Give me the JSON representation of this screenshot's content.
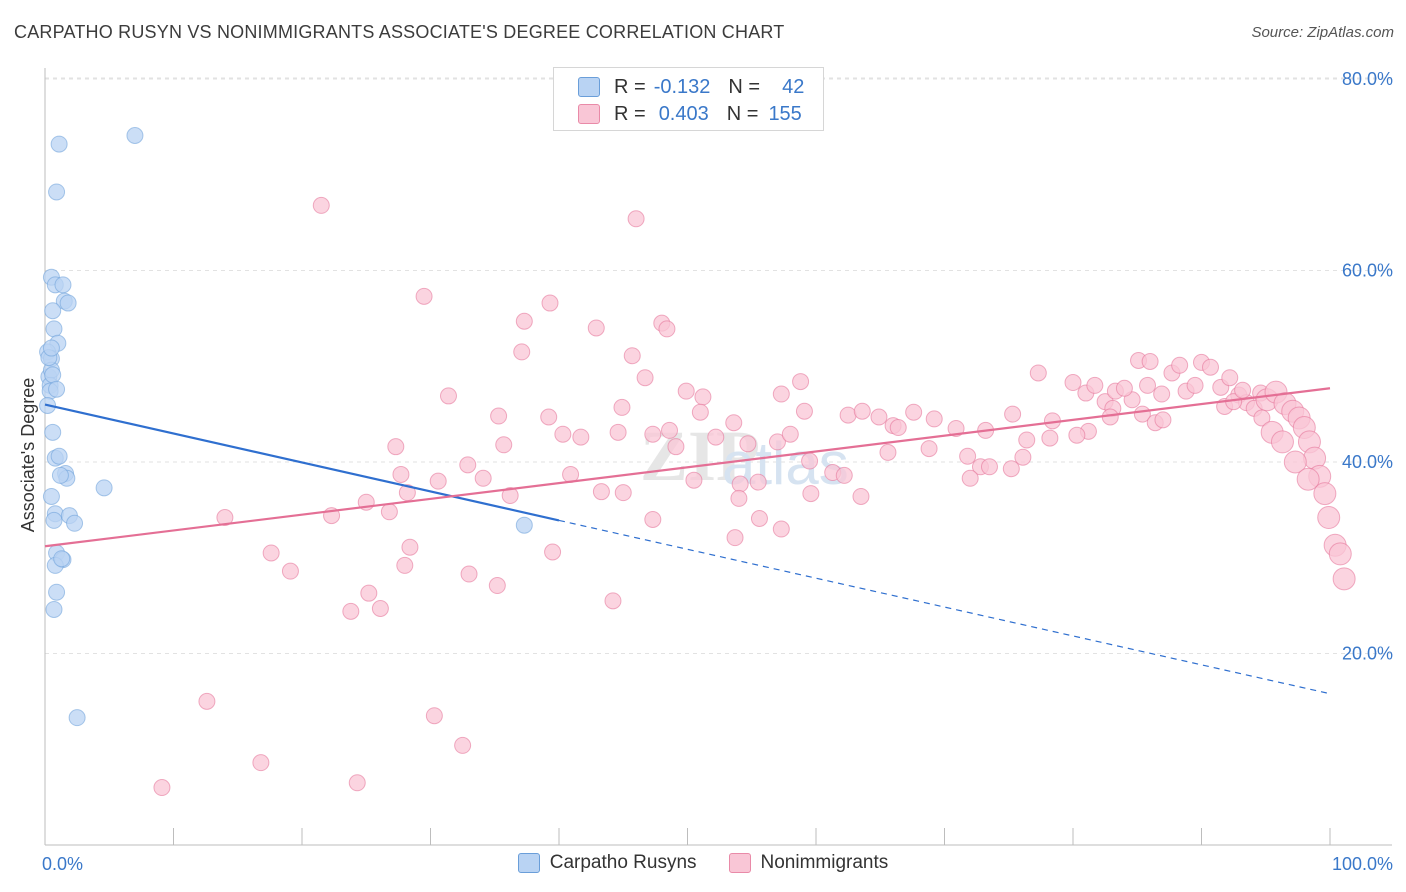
{
  "title": "CARPATHO RUSYN VS NONIMMIGRANTS ASSOCIATE'S DEGREE CORRELATION CHART",
  "source": "Source: ZipAtlas.com",
  "legend_stats": [
    {
      "r_label": "R =",
      "r_value": "-0.132",
      "n_label": "N =",
      "n_value": "42",
      "fill": "#b9d3f3",
      "stroke": "#6a9ed9"
    },
    {
      "r_label": "R =",
      "r_value": "0.403",
      "n_label": "N =",
      "n_value": "155",
      "fill": "#f9c6d6",
      "stroke": "#e98aa8"
    }
  ],
  "bottom_legend": [
    "Carpatho Rusyns",
    "Nonimmigrants"
  ],
  "chart_data": {
    "type": "scatter",
    "title": "CARPATHO RUSYN VS NONIMMIGRANTS ASSOCIATE'S DEGREE CORRELATION CHART",
    "xlabel": "",
    "ylabel": "Associate's Degree",
    "xlim": [
      0,
      100
    ],
    "ylim": [
      0,
      82
    ],
    "x_tick_labels": [
      "0.0%",
      "100.0%"
    ],
    "y_ticks": [
      20,
      40,
      60,
      80
    ],
    "y_tick_labels": [
      "20.0%",
      "40.0%",
      "60.0%",
      "80.0%"
    ],
    "grid": true,
    "legend_position": "top-center",
    "watermark": "ZIPatlas",
    "series": [
      {
        "name": "Carpatho Rusyns",
        "color": "#6a9ed9",
        "fill": "#b9d3f3",
        "trend": {
          "x": [
            0,
            40,
            100
          ],
          "y": [
            46.0,
            33.9,
            15.8
          ],
          "solid_until": 40
        },
        "points": [
          [
            1.1,
            73.2
          ],
          [
            7.0,
            74.1
          ],
          [
            0.9,
            68.2
          ],
          [
            0.5,
            59.3
          ],
          [
            0.8,
            58.5
          ],
          [
            1.4,
            58.5
          ],
          [
            1.5,
            56.8
          ],
          [
            0.6,
            55.8
          ],
          [
            0.7,
            53.9
          ],
          [
            1.0,
            52.4
          ],
          [
            0.2,
            51.5
          ],
          [
            0.5,
            50.8
          ],
          [
            0.3,
            48.9
          ],
          [
            0.5,
            49.6
          ],
          [
            0.4,
            48.0
          ],
          [
            0.6,
            43.1
          ],
          [
            0.8,
            40.4
          ],
          [
            1.1,
            40.6
          ],
          [
            1.6,
            38.8
          ],
          [
            1.7,
            38.3
          ],
          [
            4.6,
            37.3
          ],
          [
            0.5,
            36.4
          ],
          [
            0.8,
            34.6
          ],
          [
            0.7,
            33.9
          ],
          [
            1.9,
            34.4
          ],
          [
            2.3,
            33.6
          ],
          [
            0.9,
            30.5
          ],
          [
            1.4,
            29.8
          ],
          [
            0.8,
            29.2
          ],
          [
            0.9,
            26.4
          ],
          [
            0.7,
            24.6
          ],
          [
            2.5,
            13.3
          ],
          [
            37.3,
            33.4
          ],
          [
            0.4,
            47.4
          ],
          [
            1.2,
            38.6
          ],
          [
            0.3,
            50.9
          ],
          [
            0.6,
            49.1
          ],
          [
            1.8,
            56.6
          ],
          [
            0.2,
            45.9
          ],
          [
            0.9,
            47.6
          ],
          [
            0.5,
            51.9
          ],
          [
            1.3,
            29.9
          ]
        ]
      },
      {
        "name": "Nonimmigrants",
        "color": "#e46f95",
        "fill": "#f9c6d6",
        "trend": {
          "x": [
            0,
            100
          ],
          "y": [
            31.2,
            47.7
          ]
        },
        "points": [
          [
            21.5,
            66.8
          ],
          [
            46.0,
            65.4
          ],
          [
            29.5,
            57.3
          ],
          [
            39.3,
            56.6
          ],
          [
            37.3,
            54.7
          ],
          [
            42.9,
            54.0
          ],
          [
            48.0,
            54.5
          ],
          [
            48.4,
            53.9
          ],
          [
            37.1,
            51.5
          ],
          [
            45.7,
            51.1
          ],
          [
            46.7,
            48.8
          ],
          [
            31.4,
            46.9
          ],
          [
            49.9,
            47.4
          ],
          [
            51.2,
            46.8
          ],
          [
            58.8,
            48.4
          ],
          [
            57.3,
            47.1
          ],
          [
            44.9,
            45.7
          ],
          [
            35.3,
            44.8
          ],
          [
            39.2,
            44.7
          ],
          [
            51.0,
            45.2
          ],
          [
            53.6,
            44.1
          ],
          [
            59.1,
            45.3
          ],
          [
            62.5,
            44.9
          ],
          [
            63.6,
            45.3
          ],
          [
            64.9,
            44.7
          ],
          [
            66.0,
            43.8
          ],
          [
            67.6,
            45.2
          ],
          [
            66.4,
            43.6
          ],
          [
            40.3,
            42.9
          ],
          [
            41.7,
            42.6
          ],
          [
            44.6,
            43.1
          ],
          [
            47.3,
            42.9
          ],
          [
            48.6,
            43.3
          ],
          [
            52.2,
            42.6
          ],
          [
            54.7,
            41.9
          ],
          [
            57.0,
            42.1
          ],
          [
            58.0,
            42.9
          ],
          [
            49.1,
            41.6
          ],
          [
            35.7,
            41.8
          ],
          [
            27.3,
            41.6
          ],
          [
            22.3,
            34.4
          ],
          [
            32.9,
            39.7
          ],
          [
            27.7,
            38.7
          ],
          [
            34.1,
            38.3
          ],
          [
            30.6,
            38.0
          ],
          [
            28.2,
            36.8
          ],
          [
            25.0,
            35.8
          ],
          [
            36.2,
            36.5
          ],
          [
            40.9,
            38.7
          ],
          [
            43.3,
            36.9
          ],
          [
            45.0,
            36.8
          ],
          [
            50.5,
            38.1
          ],
          [
            54.1,
            37.7
          ],
          [
            55.5,
            37.9
          ],
          [
            59.5,
            40.1
          ],
          [
            61.3,
            38.9
          ],
          [
            62.2,
            38.6
          ],
          [
            63.5,
            36.4
          ],
          [
            59.6,
            36.7
          ],
          [
            54.0,
            36.2
          ],
          [
            68.8,
            41.4
          ],
          [
            65.6,
            41.0
          ],
          [
            71.8,
            40.6
          ],
          [
            72.8,
            39.5
          ],
          [
            73.5,
            39.5
          ],
          [
            76.1,
            40.5
          ],
          [
            75.2,
            39.3
          ],
          [
            72.0,
            38.3
          ],
          [
            69.2,
            44.5
          ],
          [
            70.9,
            43.5
          ],
          [
            73.2,
            43.3
          ],
          [
            75.3,
            45.0
          ],
          [
            78.4,
            44.3
          ],
          [
            76.4,
            42.3
          ],
          [
            77.3,
            49.3
          ],
          [
            80.0,
            48.3
          ],
          [
            82.5,
            46.3
          ],
          [
            83.1,
            45.6
          ],
          [
            81.2,
            43.2
          ],
          [
            82.9,
            44.7
          ],
          [
            84.6,
            46.5
          ],
          [
            85.4,
            45.0
          ],
          [
            86.4,
            44.1
          ],
          [
            87.0,
            44.4
          ],
          [
            78.2,
            42.5
          ],
          [
            80.3,
            42.8
          ],
          [
            81.0,
            47.2
          ],
          [
            81.7,
            48.0
          ],
          [
            83.3,
            47.4
          ],
          [
            84.0,
            47.7
          ],
          [
            85.1,
            50.6
          ],
          [
            85.8,
            48.0
          ],
          [
            86.9,
            47.1
          ],
          [
            87.7,
            49.3
          ],
          [
            88.8,
            47.4
          ],
          [
            89.5,
            48.0
          ],
          [
            90.0,
            50.4
          ],
          [
            90.7,
            49.9
          ],
          [
            91.5,
            47.8
          ],
          [
            92.2,
            48.8
          ],
          [
            92.9,
            47.0
          ],
          [
            93.5,
            46.2
          ],
          [
            94.1,
            45.6
          ],
          [
            94.6,
            47.2
          ],
          [
            95.1,
            46.5
          ],
          [
            95.8,
            47.3
          ],
          [
            96.5,
            46.1
          ],
          [
            97.1,
            45.3
          ],
          [
            97.6,
            44.6
          ],
          [
            98.0,
            43.6
          ],
          [
            98.4,
            42.1
          ],
          [
            98.8,
            40.4
          ],
          [
            99.2,
            38.5
          ],
          [
            99.6,
            36.7
          ],
          [
            99.9,
            34.2
          ],
          [
            100.4,
            31.3
          ],
          [
            100.8,
            30.4
          ],
          [
            101.1,
            27.8
          ],
          [
            91.8,
            45.8
          ],
          [
            92.5,
            46.3
          ],
          [
            93.2,
            47.5
          ],
          [
            94.7,
            44.6
          ],
          [
            95.5,
            43.1
          ],
          [
            96.3,
            42.1
          ],
          [
            97.3,
            40.0
          ],
          [
            98.3,
            38.2
          ],
          [
            86.0,
            50.5
          ],
          [
            88.3,
            50.1
          ],
          [
            26.8,
            34.8
          ],
          [
            25.2,
            26.3
          ],
          [
            28.0,
            29.2
          ],
          [
            26.1,
            24.7
          ],
          [
            23.8,
            24.4
          ],
          [
            19.1,
            28.6
          ],
          [
            14.0,
            34.2
          ],
          [
            17.6,
            30.5
          ],
          [
            28.4,
            31.1
          ],
          [
            33.0,
            28.3
          ],
          [
            35.2,
            27.1
          ],
          [
            39.5,
            30.6
          ],
          [
            44.2,
            25.5
          ],
          [
            47.3,
            34.0
          ],
          [
            53.7,
            32.1
          ],
          [
            55.6,
            34.1
          ],
          [
            57.3,
            33.0
          ],
          [
            12.6,
            15.0
          ],
          [
            16.8,
            8.6
          ],
          [
            24.3,
            6.5
          ],
          [
            9.1,
            6.0
          ],
          [
            30.3,
            13.5
          ],
          [
            32.5,
            10.4
          ]
        ]
      }
    ]
  }
}
